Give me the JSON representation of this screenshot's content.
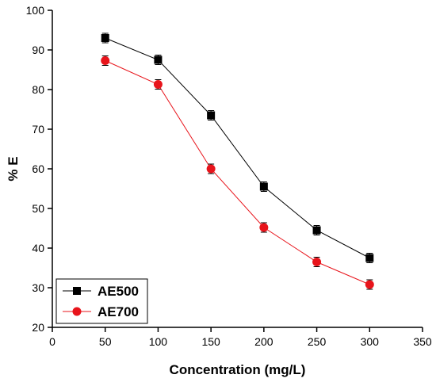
{
  "chart_data": {
    "type": "line",
    "xlabel": "Concentration (mg/L)",
    "ylabel": "% E",
    "xlim": [
      0,
      350
    ],
    "ylim": [
      20,
      100
    ],
    "xticks": [
      0,
      50,
      100,
      150,
      200,
      250,
      300,
      350
    ],
    "yticks": [
      20,
      30,
      40,
      50,
      60,
      70,
      80,
      90,
      100
    ],
    "x": [
      50,
      100,
      150,
      200,
      250,
      300
    ],
    "grid": false,
    "legend_position": "bottom-left",
    "series": [
      {
        "name": "AE500",
        "values": [
          93.0,
          87.5,
          73.5,
          55.5,
          44.5,
          37.5
        ],
        "error": [
          1.2,
          1.2,
          1.2,
          1.2,
          1.2,
          1.2
        ],
        "color": "#000000",
        "marker": "square"
      },
      {
        "name": "AE700",
        "values": [
          87.3,
          81.3,
          60.0,
          45.2,
          36.5,
          30.8
        ],
        "error": [
          1.2,
          1.2,
          1.2,
          1.2,
          1.2,
          1.2
        ],
        "color": "#e8141b",
        "marker": "circle"
      }
    ]
  }
}
